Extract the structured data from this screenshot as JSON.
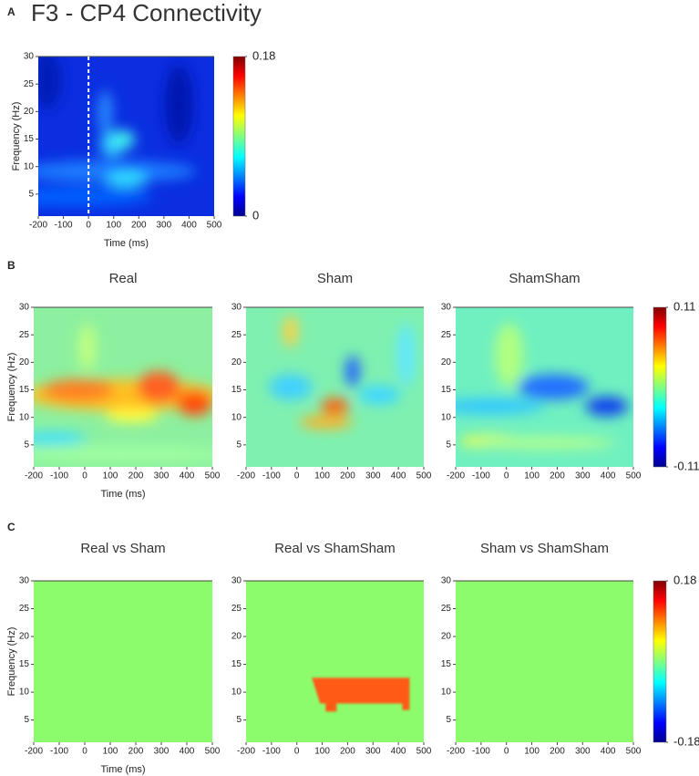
{
  "panel_labels": [
    "A",
    "B",
    "C"
  ],
  "chart_data": [
    {
      "type": "heatmap",
      "title": "F3 - CP4 Connectivity",
      "xlabel": "Time (ms)",
      "ylabel": "Frequency (Hz)",
      "xlim": [
        -200,
        500
      ],
      "xticks": [
        -200,
        -100,
        0,
        100,
        200,
        300,
        400,
        500
      ],
      "ylim": [
        1,
        30
      ],
      "yticks": [
        5,
        10,
        15,
        20,
        25,
        30
      ],
      "vline": 0,
      "colormap": "jet",
      "colorbar": {
        "lim": [
          0,
          0.18
        ],
        "ticks": [
          0,
          0.18
        ]
      }
    },
    {
      "type": "heatmap",
      "title": "Real",
      "xlabel": "Time (ms)",
      "ylabel": "Frequency (Hz)",
      "xlim": [
        -200,
        500
      ],
      "xticks": [
        -200,
        -100,
        0,
        100,
        200,
        300,
        400,
        500
      ],
      "ylim": [
        1,
        30
      ],
      "yticks": [
        5,
        10,
        15,
        20,
        25,
        30
      ],
      "colormap": "jet"
    },
    {
      "type": "heatmap",
      "title": "Sham",
      "xlim": [
        -200,
        500
      ],
      "xticks": [
        -200,
        -100,
        0,
        100,
        200,
        300,
        400,
        500
      ],
      "ylim": [
        1,
        30
      ],
      "yticks": [
        5,
        10,
        15,
        20,
        25,
        30
      ],
      "colormap": "jet"
    },
    {
      "type": "heatmap",
      "title": "ShamSham",
      "xlim": [
        -200,
        500
      ],
      "xticks": [
        -200,
        -100,
        0,
        100,
        200,
        300,
        400,
        500
      ],
      "ylim": [
        1,
        30
      ],
      "yticks": [
        5,
        10,
        15,
        20,
        25,
        30
      ],
      "colormap": "jet",
      "colorbar": {
        "lim": [
          -0.11,
          0.11
        ],
        "ticks": [
          -0.11,
          0.11
        ]
      }
    },
    {
      "type": "heatmap",
      "title": "Real vs Sham",
      "xlabel": "Time (ms)",
      "ylabel": "Frequency (Hz)",
      "xlim": [
        -200,
        500
      ],
      "xticks": [
        -200,
        -100,
        0,
        100,
        200,
        300,
        400,
        500
      ],
      "ylim": [
        1,
        30
      ],
      "yticks": [
        5,
        10,
        15,
        20,
        25,
        30
      ],
      "colormap": "jet"
    },
    {
      "type": "heatmap",
      "title": "Real vs ShamSham",
      "xlim": [
        -200,
        500
      ],
      "xticks": [
        -200,
        -100,
        0,
        100,
        200,
        300,
        400,
        500
      ],
      "ylim": [
        1,
        30
      ],
      "yticks": [
        5,
        10,
        15,
        20,
        25,
        30
      ],
      "colormap": "jet"
    },
    {
      "type": "heatmap",
      "title": "Sham vs ShamSham",
      "xlim": [
        -200,
        500
      ],
      "xticks": [
        -200,
        -100,
        0,
        100,
        200,
        300,
        400,
        500
      ],
      "ylim": [
        1,
        30
      ],
      "yticks": [
        5,
        10,
        15,
        20,
        25,
        30
      ],
      "colormap": "jet",
      "colorbar": {
        "lim": [
          -0.18,
          0.18
        ],
        "ticks": [
          -0.18,
          0.18
        ]
      }
    }
  ]
}
